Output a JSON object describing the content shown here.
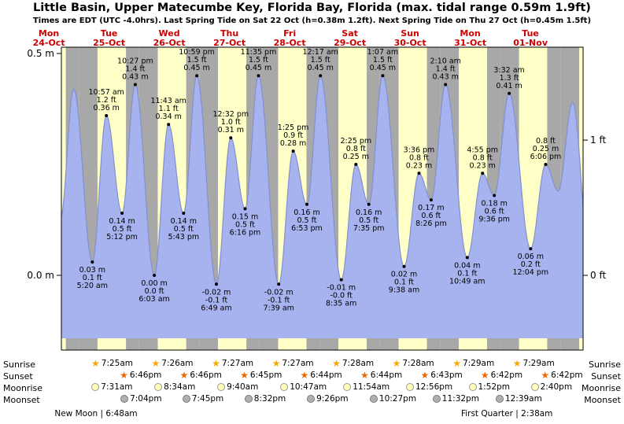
{
  "title": "Little Basin, Upper Matecumbe Key, Florida Bay, Florida (max. tidal range 0.59m 1.9ft)",
  "subtitle": "Times are EDT (UTC -4.0hrs). Last Spring Tide on Sat 22 Oct (h=0.38m 1.2ft). Next Spring Tide on Thu 27 Oct (h=0.45m 1.5ft)",
  "days": [
    {
      "name": "Mon",
      "date": "24-Oct"
    },
    {
      "name": "Tue",
      "date": "25-Oct"
    },
    {
      "name": "Wed",
      "date": "26-Oct"
    },
    {
      "name": "Thu",
      "date": "27-Oct"
    },
    {
      "name": "Fri",
      "date": "28-Oct"
    },
    {
      "name": "Sat",
      "date": "29-Oct"
    },
    {
      "name": "Sun",
      "date": "30-Oct"
    },
    {
      "name": "Mon",
      "date": "31-Oct"
    },
    {
      "name": "Tue",
      "date": "01-Nov"
    }
  ],
  "chart_data": {
    "type": "area",
    "title": "Tide height curve",
    "y_axis_left": [
      {
        "label": "0.5 m",
        "m": 0.5
      },
      {
        "label": "0.0 m",
        "m": 0.0
      }
    ],
    "y_axis_right": [
      {
        "label": "1 ft",
        "m": 0.3048
      },
      {
        "label": "0 ft",
        "m": 0.0
      }
    ],
    "window": {
      "t_start_hours": 17,
      "t_end_hours": 225,
      "y_top_m": 0.514,
      "y_bottom_m": -0.168,
      "fill_baseline_m": -0.142
    },
    "extremes": [
      {
        "day": 1,
        "date": "Tue 25-Oct",
        "type": "low",
        "m": 0.03,
        "lines": [
          "0.03 m",
          "0.1 ft",
          "5:20 am"
        ]
      },
      {
        "day": 1,
        "date": "Tue 25-Oct",
        "type": "high",
        "m": 0.36,
        "lines": [
          "10:57 am",
          "1.2 ft",
          "0.36 m"
        ]
      },
      {
        "day": 1,
        "date": "Tue 25-Oct",
        "type": "low",
        "m": 0.14,
        "lines": [
          "0.14 m",
          "0.5 ft",
          "5:12 pm"
        ]
      },
      {
        "day": 1,
        "date": "Tue 25-Oct",
        "type": "high",
        "m": 0.43,
        "lines": [
          "10:27 pm",
          "1.4 ft",
          "0.43 m"
        ]
      },
      {
        "day": 2,
        "date": "Wed 26-Oct",
        "type": "low",
        "m": 0.0,
        "lines": [
          "0.00 m",
          "0.0 ft",
          "6:03 am"
        ]
      },
      {
        "day": 2,
        "date": "Wed 26-Oct",
        "type": "high",
        "m": 0.34,
        "lines": [
          "11:43 am",
          "1.1 ft",
          "0.34 m"
        ]
      },
      {
        "day": 2,
        "date": "Wed 26-Oct",
        "type": "low",
        "m": 0.14,
        "lines": [
          "0.14 m",
          "0.5 ft",
          "5:43 pm"
        ]
      },
      {
        "day": 2,
        "date": "Wed 26-Oct",
        "type": "high",
        "m": 0.45,
        "lines": [
          "10:59 pm",
          "1.5 ft",
          "0.45 m"
        ]
      },
      {
        "day": 3,
        "date": "Thu 27-Oct",
        "type": "low",
        "m": -0.02,
        "lines": [
          "-0.02 m",
          "-0.1 ft",
          "6:49 am"
        ]
      },
      {
        "day": 3,
        "date": "Thu 27-Oct",
        "type": "high",
        "m": 0.31,
        "lines": [
          "12:32 pm",
          "1.0 ft",
          "0.31 m"
        ]
      },
      {
        "day": 3,
        "date": "Thu 27-Oct",
        "type": "low",
        "m": 0.15,
        "lines": [
          "0.15 m",
          "0.5 ft",
          "6:16 pm"
        ]
      },
      {
        "day": 3,
        "date": "Thu 27-Oct",
        "type": "high",
        "m": 0.45,
        "lines": [
          "11:35 pm",
          "1.5 ft",
          "0.45 m"
        ]
      },
      {
        "day": 4,
        "date": "Fri 28-Oct",
        "type": "low",
        "m": -0.02,
        "lines": [
          "-0.02 m",
          "-0.1 ft",
          "7:39 am"
        ]
      },
      {
        "day": 4,
        "date": "Fri 28-Oct",
        "type": "high",
        "m": 0.28,
        "lines": [
          "1:25 pm",
          "0.9 ft",
          "0.28 m"
        ]
      },
      {
        "day": 4,
        "date": "Fri 28-Oct",
        "type": "low",
        "m": 0.16,
        "lines": [
          "0.16 m",
          "0.5 ft",
          "6:53 pm"
        ]
      },
      {
        "day": 5,
        "date": "Sat 29-Oct",
        "type": "high",
        "m": 0.45,
        "lines": [
          "12:17 am",
          "1.5 ft",
          "0.45 m"
        ]
      },
      {
        "day": 5,
        "date": "Sat 29-Oct",
        "type": "low",
        "m": -0.01,
        "lines": [
          "-0.01 m",
          "-0.0 ft",
          "8:35 am"
        ]
      },
      {
        "day": 5,
        "date": "Sat 29-Oct",
        "type": "high",
        "m": 0.25,
        "lines": [
          "2:25 pm",
          "0.8 ft",
          "0.25 m"
        ]
      },
      {
        "day": 5,
        "date": "Sat 29-Oct",
        "type": "low",
        "m": 0.16,
        "lines": [
          "0.16 m",
          "0.5 ft",
          "7:35 pm"
        ]
      },
      {
        "day": 6,
        "date": "Sun 30-Oct",
        "type": "high",
        "m": 0.45,
        "lines": [
          "1:07 am",
          "1.5 ft",
          "0.45 m"
        ]
      },
      {
        "day": 6,
        "date": "Sun 30-Oct",
        "type": "low",
        "m": 0.02,
        "lines": [
          "0.02 m",
          "0.1 ft",
          "9:38 am"
        ]
      },
      {
        "day": 6,
        "date": "Sun 30-Oct",
        "type": "high",
        "m": 0.23,
        "lines": [
          "3:36 pm",
          "0.8 ft",
          "0.23 m"
        ]
      },
      {
        "day": 6,
        "date": "Sun 30-Oct",
        "type": "low",
        "m": 0.17,
        "lines": [
          "0.17 m",
          "0.6 ft",
          "8:26 pm"
        ]
      },
      {
        "day": 7,
        "date": "Mon 31-Oct",
        "type": "high",
        "m": 0.43,
        "lines": [
          "2:10 am",
          "1.4 ft",
          "0.43 m"
        ]
      },
      {
        "day": 7,
        "date": "Mon 31-Oct",
        "type": "low",
        "m": 0.04,
        "lines": [
          "0.04 m",
          "0.1 ft",
          "10:49 am"
        ]
      },
      {
        "day": 7,
        "date": "Mon 31-Oct",
        "type": "high",
        "m": 0.23,
        "lines": [
          "4:55 pm",
          "0.8 ft",
          "0.23 m"
        ]
      },
      {
        "day": 7,
        "date": "Mon 31-Oct",
        "type": "low",
        "m": 0.18,
        "lines": [
          "0.18 m",
          "0.6 ft",
          "9:36 pm"
        ]
      },
      {
        "day": 8,
        "date": "Tue 01-Nov",
        "type": "high",
        "m": 0.41,
        "lines": [
          "3:32 am",
          "1.3 ft",
          "0.41 m"
        ]
      },
      {
        "day": 8,
        "date": "Tue 01-Nov",
        "type": "low",
        "m": 0.06,
        "lines": [
          "0.06 m",
          "0.2 ft",
          "12:04 pm"
        ]
      },
      {
        "day": 8,
        "date": "Tue 01-Nov",
        "type": "high",
        "m": 0.25,
        "lines": [
          "0.8 ft",
          "0.25 m",
          "6:06 pm"
        ],
        "lines_order_note": "high"
      }
    ],
    "curve_anchors": [
      {
        "day": 0,
        "time": "10:10 am",
        "m": 0.37
      },
      {
        "day": 0,
        "time": "4:40 pm",
        "m": 0.13
      },
      {
        "day": 0,
        "time": "9:55 pm",
        "m": 0.42
      },
      {
        "day": 8,
        "time": "11:05 pm",
        "m": 0.19
      },
      {
        "day": 9,
        "time": "4:50 am",
        "m": 0.39
      },
      {
        "day": 9,
        "time": "11:30 am",
        "m": 0.05
      }
    ]
  },
  "astro": {
    "row_labels": [
      "Sunrise",
      "Sunset",
      "Moonrise",
      "Moonset"
    ],
    "sunrise": [
      {
        "day": 1,
        "time": "7:25am"
      },
      {
        "day": 2,
        "time": "7:26am"
      },
      {
        "day": 3,
        "time": "7:27am"
      },
      {
        "day": 4,
        "time": "7:27am"
      },
      {
        "day": 5,
        "time": "7:28am"
      },
      {
        "day": 6,
        "time": "7:28am"
      },
      {
        "day": 7,
        "time": "7:29am"
      },
      {
        "day": 8,
        "time": "7:29am"
      }
    ],
    "sunset": [
      {
        "day": 1,
        "time": "6:46pm"
      },
      {
        "day": 2,
        "time": "6:46pm"
      },
      {
        "day": 3,
        "time": "6:45pm"
      },
      {
        "day": 4,
        "time": "6:44pm"
      },
      {
        "day": 5,
        "time": "6:44pm"
      },
      {
        "day": 6,
        "time": "6:43pm"
      },
      {
        "day": 7,
        "time": "6:42pm"
      },
      {
        "day": 8,
        "time": "6:42pm"
      }
    ],
    "moonrise": [
      {
        "day": 1,
        "time": "7:31am"
      },
      {
        "day": 2,
        "time": "8:34am"
      },
      {
        "day": 3,
        "time": "9:40am"
      },
      {
        "day": 4,
        "time": "10:47am"
      },
      {
        "day": 5,
        "time": "11:54am"
      },
      {
        "day": 6,
        "time": "12:56pm"
      },
      {
        "day": 7,
        "time": "1:52pm"
      },
      {
        "day": 8,
        "time": "2:40pm"
      }
    ],
    "moonset": [
      {
        "day": 1,
        "time": "7:04pm"
      },
      {
        "day": 2,
        "time": "7:45pm"
      },
      {
        "day": 3,
        "time": "8:32pm"
      },
      {
        "day": 4,
        "time": "9:26pm"
      },
      {
        "day": 5,
        "time": "10:27pm"
      },
      {
        "day": 6,
        "time": "11:32pm"
      },
      {
        "day": 8,
        "time": "12:39am"
      }
    ],
    "phases": [
      {
        "text": "New Moon | 6:48am",
        "day": 1,
        "time": "6:48am"
      },
      {
        "text": "First Quarter | 2:38am",
        "day": 8,
        "time": "2:38am"
      }
    ]
  },
  "colors": {
    "day_band": "#ffffc8",
    "night_band": "#a8a8a8",
    "tide_fill": "#a7b3ee",
    "tide_stroke": "#8190d0",
    "day_label": "#cc0000",
    "sunrise_icon": "#f5a800",
    "sunset_icon": "#ee6600",
    "moonrise_icon": "#ffffbb",
    "moonset_icon": "#b0b0b0",
    "axis": "#000000"
  }
}
